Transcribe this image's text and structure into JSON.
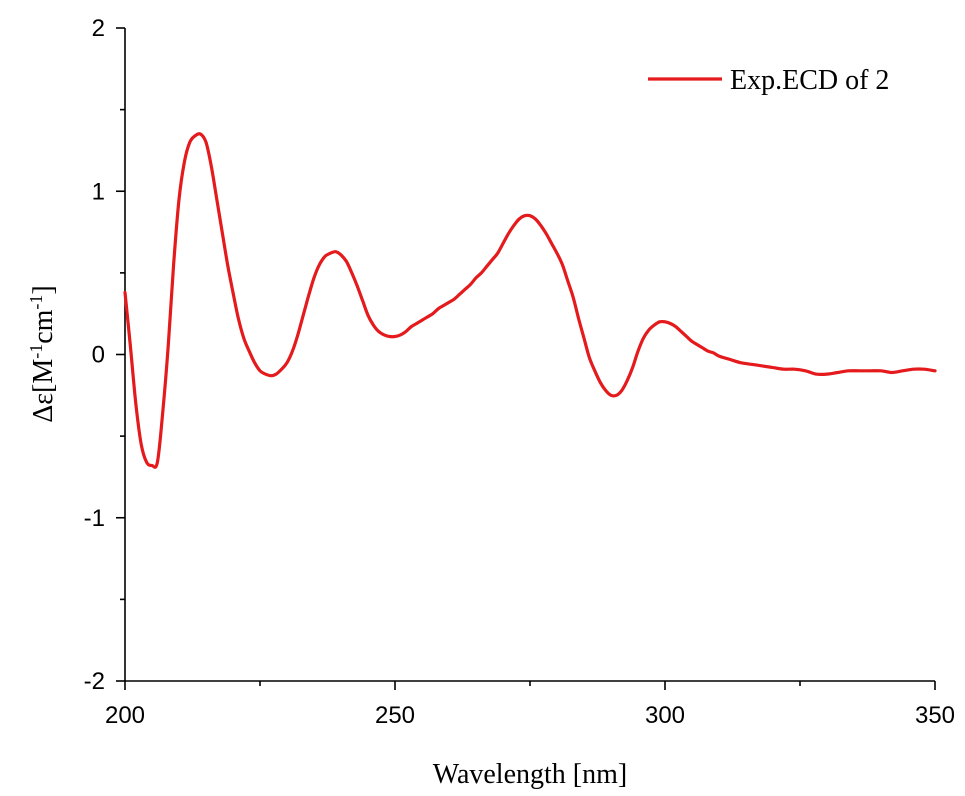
{
  "chart_data": {
    "type": "line",
    "title": "",
    "xlabel": "Wavelength [nm]",
    "ylabel_main": "Δε[M",
    "ylabel_sup1": "-1",
    "ylabel_mid": "cm",
    "ylabel_sup2": "-1",
    "ylabel_end": "]",
    "xlim": [
      200,
      350
    ],
    "ylim": [
      -2,
      2
    ],
    "xticks": [
      200,
      250,
      300,
      350
    ],
    "xtick_labels": [
      "200",
      "250",
      "300",
      "350"
    ],
    "yticks": [
      -2,
      -1,
      0,
      1,
      2
    ],
    "ytick_labels": [
      "-2",
      "-1",
      "0",
      "1",
      "2"
    ],
    "grid": false,
    "legend_position": "top-right",
    "series": [
      {
        "name": "Exp.ECD of 2",
        "color": "#e41a1c",
        "x": [
          200,
          201,
          202,
          203,
          204,
          205,
          206,
          207,
          208,
          209,
          210,
          211,
          212,
          213,
          214,
          215,
          216,
          217,
          218,
          219,
          220,
          221,
          222,
          223,
          224,
          225,
          226,
          227,
          228,
          229,
          230,
          231,
          232,
          233,
          234,
          235,
          236,
          237,
          238,
          239,
          240,
          241,
          242,
          243,
          244,
          245,
          246,
          247,
          248,
          249,
          250,
          251,
          252,
          253,
          254,
          255,
          256,
          257,
          258,
          259,
          260,
          261,
          262,
          263,
          264,
          265,
          266,
          267,
          268,
          269,
          270,
          271,
          272,
          273,
          274,
          275,
          276,
          277,
          278,
          279,
          280,
          281,
          282,
          283,
          284,
          285,
          286,
          287,
          288,
          289,
          290,
          291,
          292,
          293,
          294,
          295,
          296,
          297,
          298,
          299,
          300,
          301,
          302,
          303,
          304,
          305,
          306,
          307,
          308,
          309,
          310,
          312,
          314,
          316,
          318,
          320,
          322,
          324,
          326,
          328,
          330,
          332,
          334,
          336,
          338,
          340,
          342,
          344,
          346,
          348,
          350
        ],
        "y": [
          0.38,
          0.05,
          -0.3,
          -0.55,
          -0.66,
          -0.68,
          -0.66,
          -0.35,
          0.05,
          0.55,
          0.95,
          1.18,
          1.3,
          1.34,
          1.35,
          1.3,
          1.15,
          0.95,
          0.75,
          0.55,
          0.38,
          0.22,
          0.1,
          0.02,
          -0.05,
          -0.1,
          -0.12,
          -0.13,
          -0.12,
          -0.09,
          -0.05,
          0.02,
          0.12,
          0.24,
          0.36,
          0.47,
          0.55,
          0.6,
          0.62,
          0.63,
          0.61,
          0.57,
          0.5,
          0.42,
          0.33,
          0.24,
          0.18,
          0.14,
          0.12,
          0.11,
          0.11,
          0.12,
          0.14,
          0.17,
          0.19,
          0.21,
          0.23,
          0.25,
          0.28,
          0.3,
          0.32,
          0.34,
          0.37,
          0.4,
          0.43,
          0.47,
          0.5,
          0.54,
          0.58,
          0.62,
          0.68,
          0.74,
          0.79,
          0.83,
          0.85,
          0.85,
          0.83,
          0.79,
          0.74,
          0.68,
          0.62,
          0.55,
          0.45,
          0.35,
          0.22,
          0.1,
          -0.02,
          -0.1,
          -0.17,
          -0.22,
          -0.25,
          -0.25,
          -0.22,
          -0.16,
          -0.08,
          0.02,
          0.1,
          0.15,
          0.18,
          0.2,
          0.2,
          0.19,
          0.17,
          0.14,
          0.11,
          0.08,
          0.06,
          0.04,
          0.02,
          0.01,
          -0.01,
          -0.03,
          -0.05,
          -0.06,
          -0.07,
          -0.08,
          -0.09,
          -0.09,
          -0.1,
          -0.12,
          -0.12,
          -0.11,
          -0.1,
          -0.1,
          -0.1,
          -0.1,
          -0.11,
          -0.1,
          -0.09,
          -0.09,
          -0.1
        ]
      }
    ]
  }
}
